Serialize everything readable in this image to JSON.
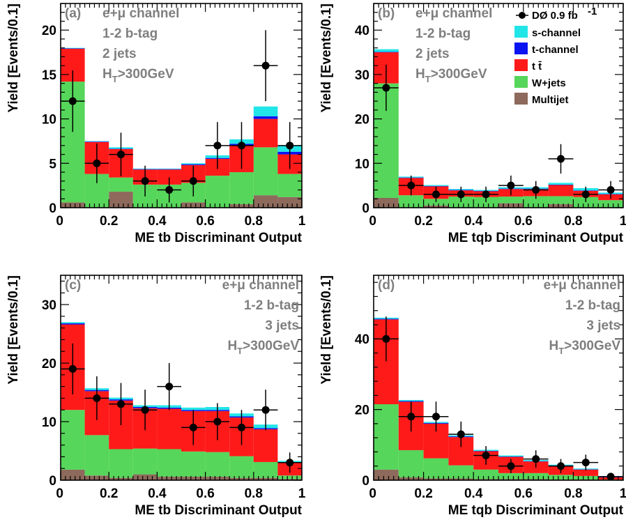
{
  "legend": {
    "data_label": "DØ 0.9 fb",
    "data_sup": "-1",
    "entries": [
      {
        "key": "s",
        "label": "s-channel",
        "color": "#22e5e8"
      },
      {
        "key": "t",
        "label": "t-channel",
        "color": "#0a14f0"
      },
      {
        "key": "tt",
        "label": "t t̄",
        "color": "#ff1a1a"
      },
      {
        "key": "w",
        "label": "W+jets",
        "color": "#56d65a"
      },
      {
        "key": "m",
        "label": "Multijet",
        "color": "#8d6a5b"
      }
    ]
  },
  "chart_data": [
    {
      "type": "bar",
      "stacked": true,
      "panel_label": "(a)",
      "info": [
        "e+μ channel",
        "1-2 b-tag",
        "2 jets",
        "H_T>300GeV"
      ],
      "info_align": "left",
      "xlabel": "ME tb Discriminant Output",
      "ylabel": "Yield [Events/0.1]",
      "xlim": [
        0,
        1
      ],
      "ylim": [
        0,
        23
      ],
      "xticks": [
        "0",
        "0.2",
        "0.4",
        "0.6",
        "0.8",
        "1"
      ],
      "yticks": [
        0,
        5,
        10,
        15,
        20
      ],
      "bin_edges": [
        0,
        0.1,
        0.2,
        0.3,
        0.4,
        0.5,
        0.6,
        0.7,
        0.8,
        0.9,
        1.0
      ],
      "series": [
        {
          "name": "Multijet",
          "values": [
            0.6,
            0,
            1.8,
            0,
            0,
            0.6,
            0,
            0.4,
            1.4,
            1.2
          ]
        },
        {
          "name": "W+jets",
          "values": [
            13.6,
            3.8,
            1.6,
            2.6,
            2.6,
            2.2,
            3.6,
            3.6,
            5.4,
            2.6
          ]
        },
        {
          "name": "t t̄",
          "values": [
            3.7,
            3.6,
            3.2,
            1.7,
            1.7,
            2.0,
            1.9,
            3.0,
            3.2,
            2.2
          ]
        },
        {
          "name": "t-channel",
          "values": [
            0.05,
            0.05,
            0.05,
            0.05,
            0.05,
            0.1,
            0.1,
            0.2,
            0.3,
            0.3
          ]
        },
        {
          "name": "s-channel",
          "values": [
            0.05,
            0.05,
            0.15,
            0.05,
            0.05,
            0.1,
            0.3,
            0.5,
            1.1,
            0.7
          ]
        }
      ],
      "data_points": {
        "x": [
          0.05,
          0.15,
          0.25,
          0.35,
          0.45,
          0.55,
          0.65,
          0.75,
          0.85,
          0.95
        ],
        "y": [
          12,
          5,
          6,
          3,
          2,
          3,
          7,
          7,
          16,
          7
        ]
      }
    },
    {
      "type": "bar",
      "stacked": true,
      "panel_label": "(b)",
      "info": [
        "e+μ channel",
        "1-2 b-tag",
        "2 jets",
        "H_T>300GeV"
      ],
      "info_align": "left",
      "xlabel": "ME tqb Discriminant Output",
      "ylabel": "Yield [Events/0.1]",
      "xlim": [
        0,
        1
      ],
      "ylim": [
        0,
        46
      ],
      "xticks": [
        "0",
        "0.2",
        "0.4",
        "0.6",
        "0.8",
        "1"
      ],
      "yticks": [
        0,
        10,
        20,
        30,
        40
      ],
      "bin_edges": [
        0,
        0.1,
        0.2,
        0.3,
        0.4,
        0.5,
        0.6,
        0.7,
        0.8,
        0.9,
        1.0
      ],
      "series": [
        {
          "name": "Multijet",
          "values": [
            2.2,
            0,
            0.5,
            0,
            0,
            1.0,
            0,
            0.8,
            0,
            0
          ]
        },
        {
          "name": "W+jets",
          "values": [
            25.8,
            2.8,
            1.5,
            2.5,
            2.4,
            1.5,
            2.6,
            1.8,
            2.4,
            1.7
          ]
        },
        {
          "name": "t t̄",
          "values": [
            7.0,
            3.9,
            2.8,
            1.4,
            1.3,
            1.7,
            1.6,
            2.5,
            1.4,
            1.3
          ]
        },
        {
          "name": "t-channel",
          "values": [
            0.1,
            0.1,
            0.1,
            0.1,
            0.1,
            0.1,
            0.1,
            0.1,
            0.1,
            0.1
          ]
        },
        {
          "name": "s-channel",
          "values": [
            0.6,
            0.2,
            0.2,
            0.2,
            0.2,
            0.3,
            0.3,
            0.4,
            0.5,
            0.3
          ]
        }
      ],
      "data_points": {
        "x": [
          0.05,
          0.15,
          0.25,
          0.35,
          0.45,
          0.55,
          0.65,
          0.75,
          0.85,
          0.95
        ],
        "y": [
          27,
          5,
          3,
          3,
          3,
          5,
          4,
          11,
          3,
          4
        ]
      }
    },
    {
      "type": "bar",
      "stacked": true,
      "panel_label": "(c)",
      "info": [
        "e+μ channel",
        "1-2 b-tag",
        "3 jets",
        "H_T>300GeV"
      ],
      "info_align": "right",
      "xlabel": "ME tb Discriminant Output",
      "ylabel": "Yield [Events/0.1]",
      "xlim": [
        0,
        1
      ],
      "ylim": [
        0,
        35
      ],
      "xticks": [
        "0",
        "0.2",
        "0.4",
        "0.6",
        "0.8",
        "1"
      ],
      "yticks": [
        0,
        10,
        20,
        30
      ],
      "bin_edges": [
        0,
        0.1,
        0.2,
        0.3,
        0.4,
        0.5,
        0.6,
        0.7,
        0.8,
        0.9,
        1.0
      ],
      "series": [
        {
          "name": "Multijet",
          "values": [
            1.8,
            0.8,
            0.4,
            1.0,
            0.6,
            0.6,
            0.6,
            0.4,
            0.4,
            0.2
          ]
        },
        {
          "name": "W+jets",
          "values": [
            10.2,
            6.9,
            4.9,
            4.4,
            4.7,
            4.3,
            4.2,
            3.7,
            2.7,
            0.6
          ]
        },
        {
          "name": "t t̄",
          "values": [
            14.6,
            7.5,
            8.3,
            6.9,
            6.9,
            6.9,
            7.0,
            6.6,
            5.6,
            2.2
          ]
        },
        {
          "name": "t-channel",
          "values": [
            0.2,
            0.2,
            0.2,
            0.2,
            0.2,
            0.2,
            0.2,
            0.2,
            0.2,
            0.1
          ]
        },
        {
          "name": "s-channel",
          "values": [
            0.2,
            0.3,
            0.3,
            0.3,
            0.4,
            0.4,
            0.5,
            0.5,
            0.6,
            0.2
          ]
        }
      ],
      "data_points": {
        "x": [
          0.05,
          0.15,
          0.25,
          0.35,
          0.45,
          0.55,
          0.65,
          0.75,
          0.85,
          0.95
        ],
        "y": [
          19,
          14,
          13,
          12,
          16,
          9,
          10,
          9,
          12,
          3
        ]
      }
    },
    {
      "type": "bar",
      "stacked": true,
      "panel_label": "(d)",
      "info": [
        "e+μ channel",
        "1-2 b-tag",
        "3 jets",
        "H_T>300GeV"
      ],
      "info_align": "right",
      "xlabel": "ME tqb Discriminant Output",
      "ylabel": "Yield [Events/0.1]",
      "xlim": [
        0,
        1
      ],
      "ylim": [
        0,
        58
      ],
      "xticks": [
        "0",
        "0.2",
        "0.4",
        "0.6",
        "0.8",
        "1"
      ],
      "yticks": [
        0,
        20,
        40
      ],
      "bin_edges": [
        0,
        0.1,
        0.2,
        0.3,
        0.4,
        0.5,
        0.6,
        0.7,
        0.8,
        0.9,
        1.0
      ],
      "series": [
        {
          "name": "Multijet",
          "values": [
            3.0,
            0.8,
            0.5,
            0.5,
            0.3,
            0.3,
            0.3,
            0.2,
            0.2,
            0
          ]
        },
        {
          "name": "W+jets",
          "values": [
            18.5,
            7.7,
            5.7,
            3.7,
            2.7,
            1.7,
            1.7,
            1.3,
            1.0,
            0.2
          ]
        },
        {
          "name": "t t̄",
          "values": [
            24.0,
            13.7,
            9.8,
            8.0,
            5.2,
            4.6,
            3.3,
            2.6,
            1.8,
            0.6
          ]
        },
        {
          "name": "t-channel",
          "values": [
            0.2,
            0.2,
            0.2,
            0.2,
            0.1,
            0.1,
            0.1,
            0.1,
            0.1,
            0.1
          ]
        },
        {
          "name": "s-channel",
          "values": [
            0.3,
            0.3,
            0.3,
            0.3,
            0.3,
            0.3,
            0.3,
            0.2,
            0.2,
            0.1
          ]
        }
      ],
      "data_points": {
        "x": [
          0.05,
          0.15,
          0.25,
          0.35,
          0.45,
          0.55,
          0.65,
          0.75,
          0.85,
          0.95
        ],
        "y": [
          40,
          18,
          18,
          13,
          7,
          4,
          6,
          4,
          5,
          1
        ]
      }
    }
  ]
}
